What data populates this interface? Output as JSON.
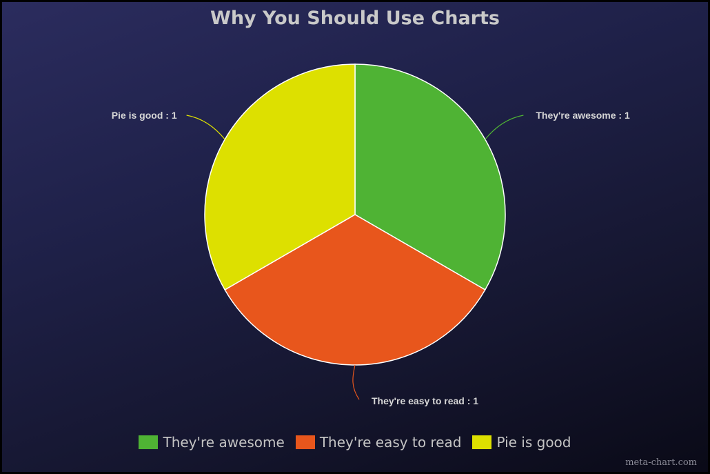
{
  "chart_data": {
    "type": "pie",
    "title": "Why You Should Use Charts",
    "slices": [
      {
        "label": "They're awesome",
        "value": 1,
        "color": "#4fb334",
        "data_label": "They're awesome : 1"
      },
      {
        "label": "They're easy to read",
        "value": 1,
        "color": "#e8561c",
        "data_label": "They're easy to read : 1"
      },
      {
        "label": "Pie is good",
        "value": 1,
        "color": "#dde000",
        "data_label": "Pie is good : 1"
      }
    ],
    "legend": {
      "placement": "bottom",
      "items": [
        "They're awesome",
        "They're easy to read",
        "Pie is good"
      ]
    },
    "start_angle": "top",
    "direction": "clockwise"
  },
  "watermark": "meta-chart.com"
}
